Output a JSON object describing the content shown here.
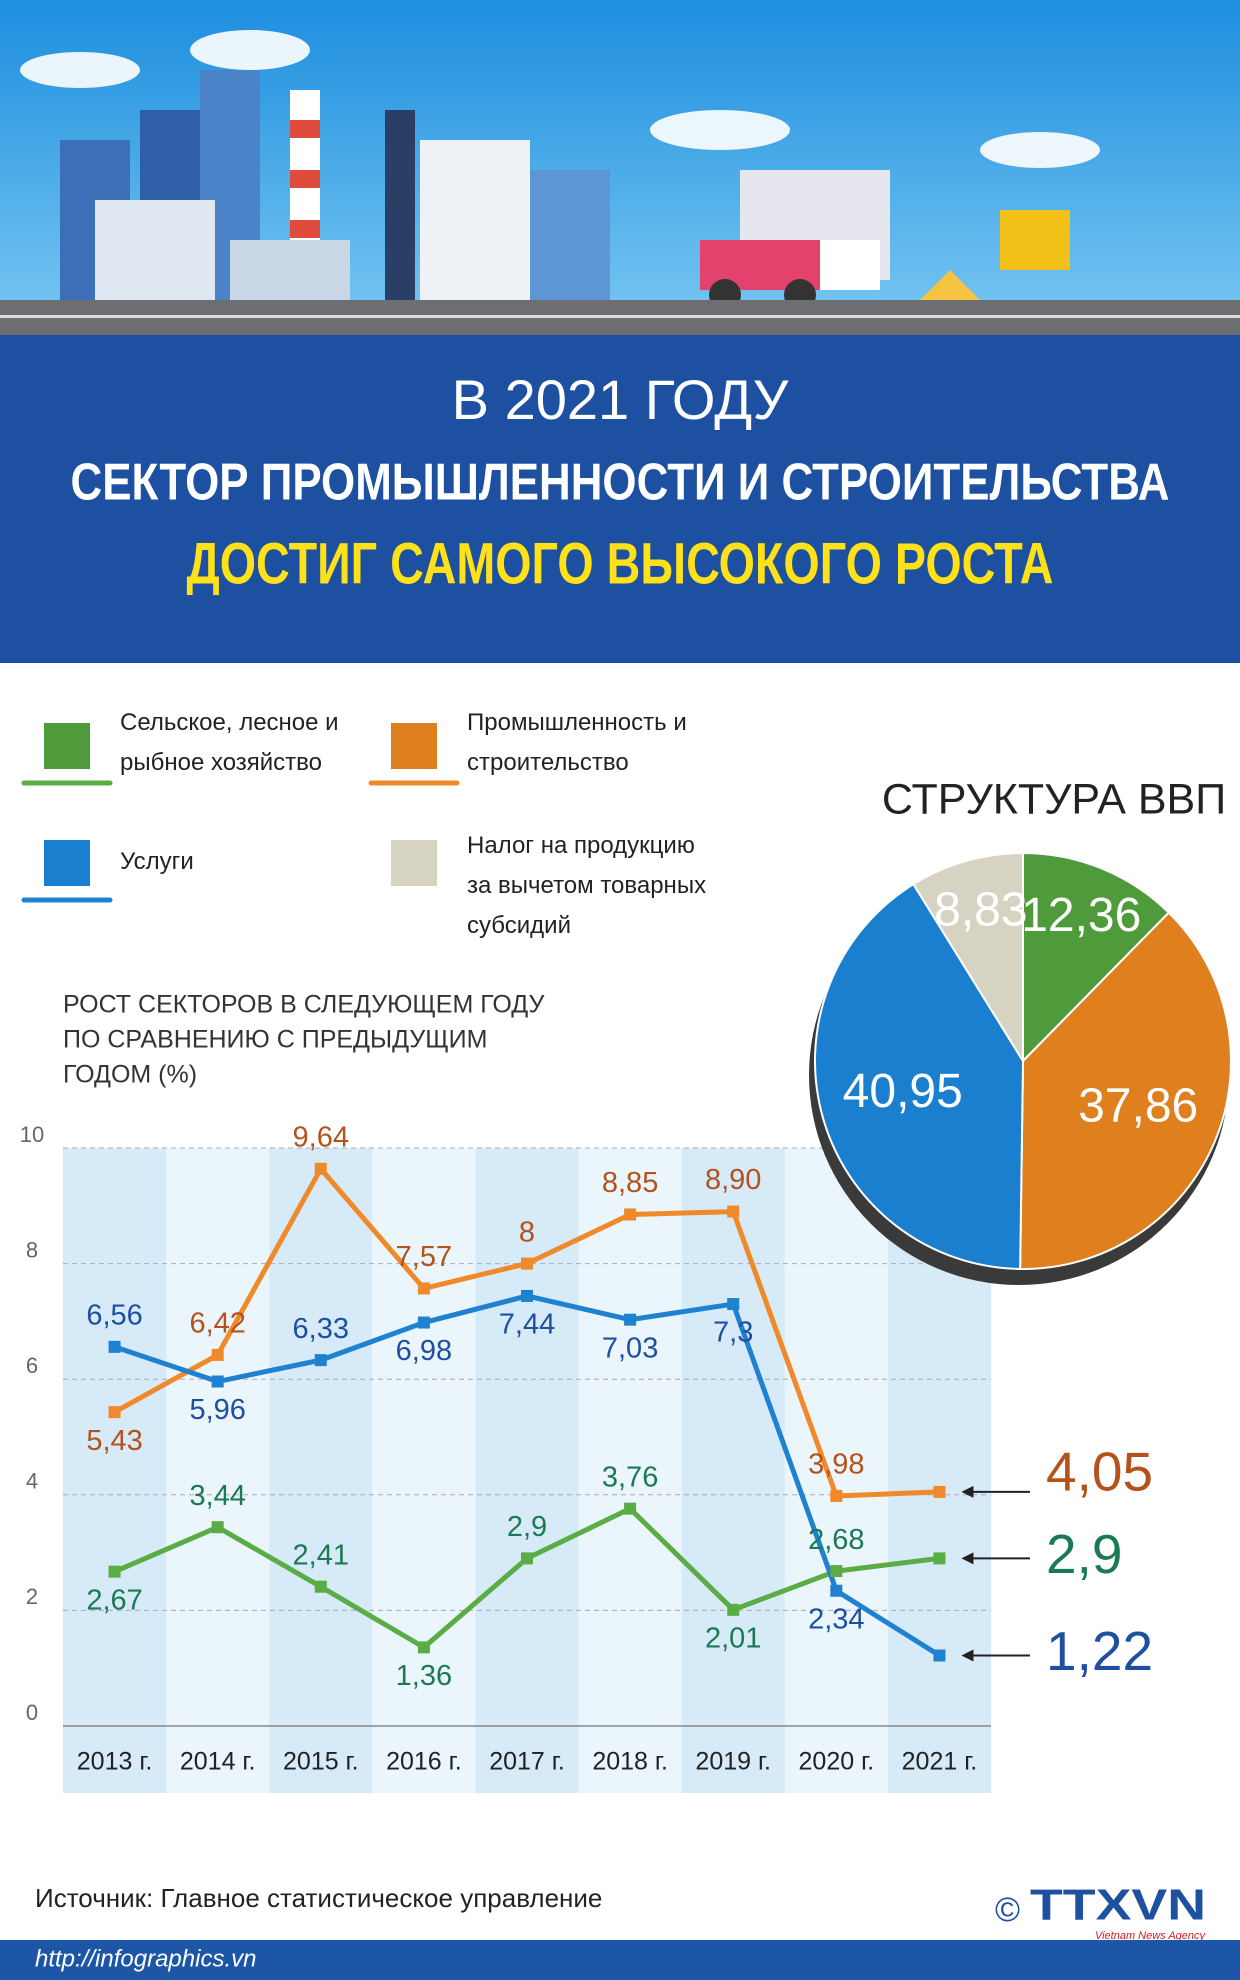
{
  "header": {
    "line1": "В 2021 ГОДУ",
    "line2": "СЕКТОР ПРОМЫШЛЕННОСТИ И СТРОИТЕЛЬСТВА",
    "line3": "ДОСТИГ САМОГО ВЫСОКОГО РОСТА"
  },
  "chart_data": [
    {
      "type": "line",
      "title": [
        "РОСТ СЕКТОРОВ В СЛЕДУЮЩЕМ ГОДУ",
        "ПО СРАВНЕНИЮ С ПРЕДЫДУЩИМ",
        "ГОДОМ (%)"
      ],
      "categories": [
        "2013 г.",
        "2014 г.",
        "2015 г.",
        "2016 г.",
        "2017 г.",
        "2018 г.",
        "2019 г.",
        "2020 г.",
        "2021 г."
      ],
      "ylim": [
        0,
        10
      ],
      "yticks": [
        0,
        2,
        4,
        6,
        8,
        10
      ],
      "grid": true,
      "series": [
        {
          "color": "#5aac44",
          "label_color": "#1b7a52",
          "values": [
            2.67,
            3.44,
            2.41,
            1.36,
            2.9,
            3.76,
            2.01,
            2.68,
            2.9
          ],
          "value_labels": [
            "2,67",
            "3,44",
            "2,41",
            "1,36",
            "2,9",
            "3,76",
            "2,01",
            "2,68",
            "2,9"
          ]
        },
        {
          "color": "#f0892a",
          "label_color": "#b5521c",
          "values": [
            5.43,
            6.42,
            9.64,
            7.57,
            8,
            8.85,
            8.9,
            3.98,
            4.05
          ],
          "value_labels": [
            "5,43",
            "6,42",
            "9,64",
            "7,57",
            "8",
            "8,85",
            "8,90",
            "3,98",
            "4,05"
          ]
        },
        {
          "color": "#1f82d0",
          "label_color": "#1e4fa0",
          "values": [
            6.56,
            5.96,
            6.33,
            6.98,
            7.44,
            7.03,
            7.3,
            2.34,
            1.22
          ],
          "value_labels": [
            "6,56",
            "5,96",
            "6,33",
            "6,98",
            "7,44",
            "7,03",
            "7,3",
            "2,34",
            "1,22"
          ]
        }
      ]
    },
    {
      "type": "pie",
      "title": "СТРУКТУРА ВВП",
      "categories": [
        "Сельское, лесное и рыбное хозяйство",
        "Промышленность и строительство",
        "Услуги",
        "Налог на продукцию за вычетом товарных субсидий"
      ],
      "values": [
        12.36,
        37.86,
        40.95,
        8.83
      ],
      "value_labels": [
        "12,36",
        "37,86",
        "40,95",
        "8,83"
      ],
      "colors": [
        "#4f9a3a",
        "#e07f1e",
        "#1a7fcf",
        "#d7d3c2"
      ]
    }
  ],
  "footer": {
    "source": "Источник: Главное статистическое управление",
    "url": "http://infographics.vn",
    "copyright": "©",
    "logo": "TTXVN",
    "logo_sub": "Vietnam News Agency"
  }
}
